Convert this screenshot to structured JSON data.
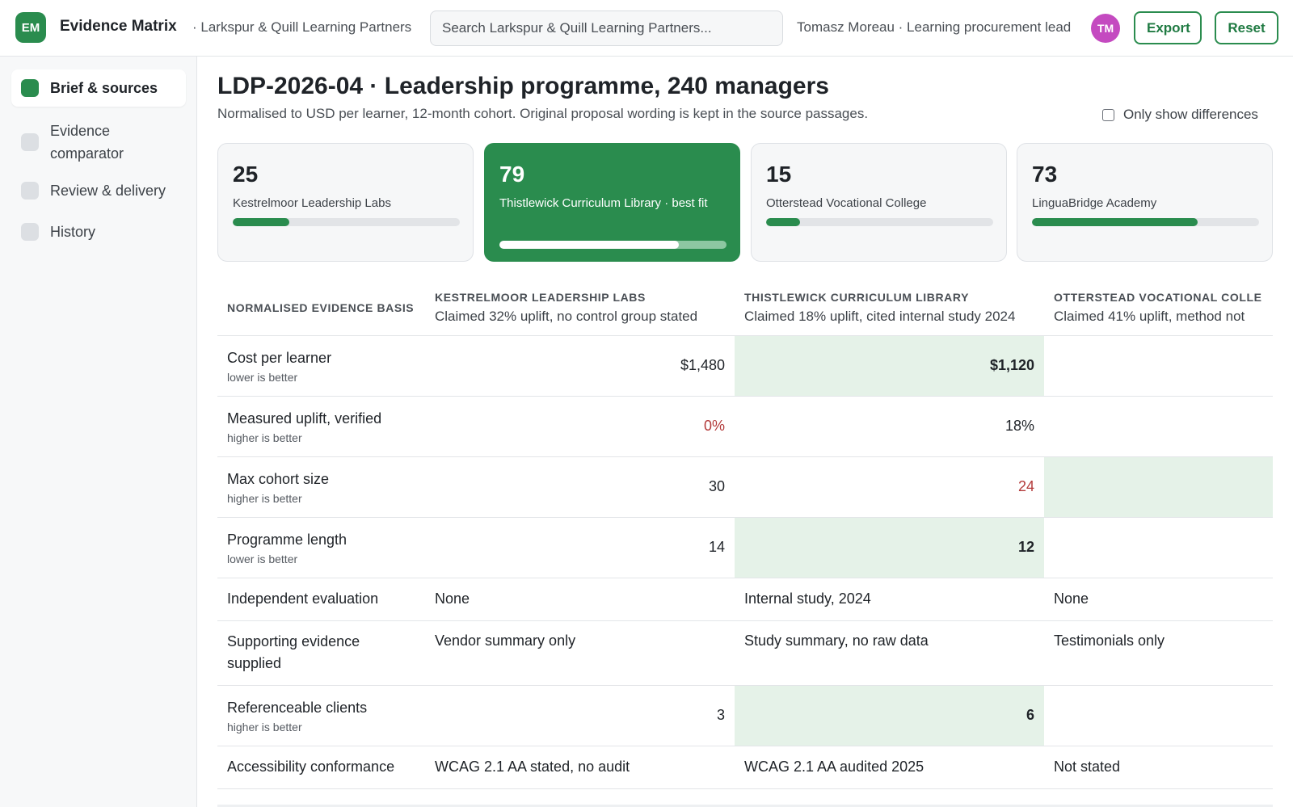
{
  "header": {
    "logo_initials": "EM",
    "app_title": "Evidence Matrix",
    "org_name": "· Larkspur & Quill Learning Partners",
    "search_placeholder": "Search Larkspur & Quill Learning Partners...",
    "user": "Tomasz Moreau · Learning procurement lead",
    "avatar_initials": "TM",
    "export_label": "Export",
    "reset_label": "Reset"
  },
  "sidebar": {
    "items": [
      {
        "label": "Brief & sources",
        "active": true
      },
      {
        "label": "Evidence comparator",
        "active": false
      },
      {
        "label": "Review & delivery",
        "active": false
      },
      {
        "label": "History",
        "active": false
      }
    ]
  },
  "main": {
    "title": "LDP-2026-04 · Leadership programme, 240 managers",
    "subtitle": "Normalised to USD per learner, 12-month cohort. Original proposal wording is kept in the source passages.",
    "only_diff_label": "Only show differences",
    "only_diff_checked": false
  },
  "vendors": [
    {
      "score": "25",
      "name": "Kestrelmoor Leadership Labs",
      "score_fraction": 0.25,
      "best": false
    },
    {
      "score": "79",
      "name": "Thistlewick Curriculum Library · best fit",
      "score_fraction": 0.79,
      "best": true
    },
    {
      "score": "15",
      "name": "Otterstead Vocational College",
      "score_fraction": 0.15,
      "best": false
    },
    {
      "score": "73",
      "name": "LinguaBridge Academy",
      "score_fraction": 0.73,
      "best": false
    }
  ],
  "table": {
    "basis_header": "NORMALISED EVIDENCE BASIS",
    "columns": [
      {
        "vendor": "KESTRELMOOR LEADERSHIP LABS",
        "claim": "Claimed 32% uplift, no control group stated"
      },
      {
        "vendor": "THISTLEWICK CURRICULUM LIBRARY",
        "claim": "Claimed 18% uplift, cited internal study 2024"
      },
      {
        "vendor": "OTTERSTEAD VOCATIONAL COLLE",
        "claim": "Claimed 41% uplift, method not"
      }
    ],
    "rows": {
      "cost": {
        "label": "Cost per learner",
        "hint": "lower is better",
        "v": [
          "$1,480",
          "$1,120",
          ""
        ]
      },
      "uplift": {
        "label": "Measured uplift, verified",
        "hint": "higher is better",
        "v": [
          "0%",
          "18%",
          ""
        ]
      },
      "cohort": {
        "label": "Max cohort size",
        "hint": "higher is better",
        "v": [
          "30",
          "24",
          ""
        ]
      },
      "length": {
        "label": "Programme length",
        "hint": "lower is better",
        "v": [
          "14",
          "12",
          ""
        ]
      },
      "indep": {
        "label": "Independent evaluation",
        "v": [
          "None",
          "Internal study, 2024",
          "None"
        ]
      },
      "support": {
        "label": "Supporting evidence supplied",
        "v": [
          "Vendor summary only",
          "Study summary, no raw data",
          "Testimonials only"
        ]
      },
      "refs": {
        "label": "Referenceable clients",
        "hint": "higher is better",
        "v": [
          "3",
          "6",
          ""
        ]
      },
      "access": {
        "label": "Accessibility conformance",
        "v": [
          "WCAG 2.1 AA stated, no audit",
          "WCAG 2.1 AA audited 2025",
          "Not stated"
        ]
      }
    }
  },
  "colors": {
    "accent": "#2a8c4e",
    "highlight": "#e5f2e8",
    "warning": "#b33a3a",
    "avatar": "#c44ac0"
  }
}
